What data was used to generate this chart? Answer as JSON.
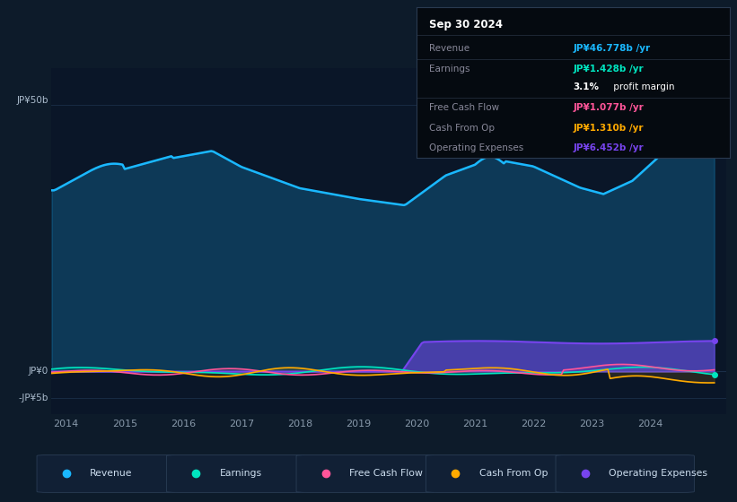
{
  "bg_color": "#0d1b2a",
  "plot_bg_color": "#0d1b2a",
  "chart_area_color": "#0a1628",
  "grid_color": "#1a2e48",
  "y_label_50b": "JP¥50b",
  "y_label_0": "JP¥0",
  "y_label_neg5b": "-JP¥5b",
  "x_ticks": [
    2014,
    2015,
    2016,
    2017,
    2018,
    2019,
    2020,
    2021,
    2022,
    2023,
    2024
  ],
  "ylim": [
    -8,
    57
  ],
  "revenue_color": "#1ab8ff",
  "earnings_color": "#00e5c0",
  "fcf_color": "#ff5599",
  "cashfromop_color": "#ffaa00",
  "opex_color": "#7744ee",
  "legend_items": [
    "Revenue",
    "Earnings",
    "Free Cash Flow",
    "Cash From Op",
    "Operating Expenses"
  ],
  "legend_colors": [
    "#1ab8ff",
    "#00e5c0",
    "#ff5599",
    "#ffaa00",
    "#7744ee"
  ],
  "info_box": {
    "date": "Sep 30 2024",
    "revenue_label": "Revenue",
    "revenue_value": "JP¥46.778b /yr",
    "earnings_label": "Earnings",
    "earnings_value": "JP¥1.428b /yr",
    "margin_text_bold": "3.1%",
    "margin_text_rest": " profit margin",
    "fcf_label": "Free Cash Flow",
    "fcf_value": "JP¥1.077b /yr",
    "cashop_label": "Cash From Op",
    "cashop_value": "JP¥1.310b /yr",
    "opex_label": "Operating Expenses",
    "opex_value": "JP¥6.452b /yr",
    "revenue_color": "#1ab8ff",
    "earnings_color": "#00e5c0",
    "fcf_color": "#ff5599",
    "cashop_color": "#ffaa00",
    "opex_color": "#7744ee",
    "label_color": "#888899",
    "date_color": "#ffffff",
    "margin_color": "#ffffff",
    "bg_color": "#050a10",
    "border_color": "#2a3a50"
  }
}
